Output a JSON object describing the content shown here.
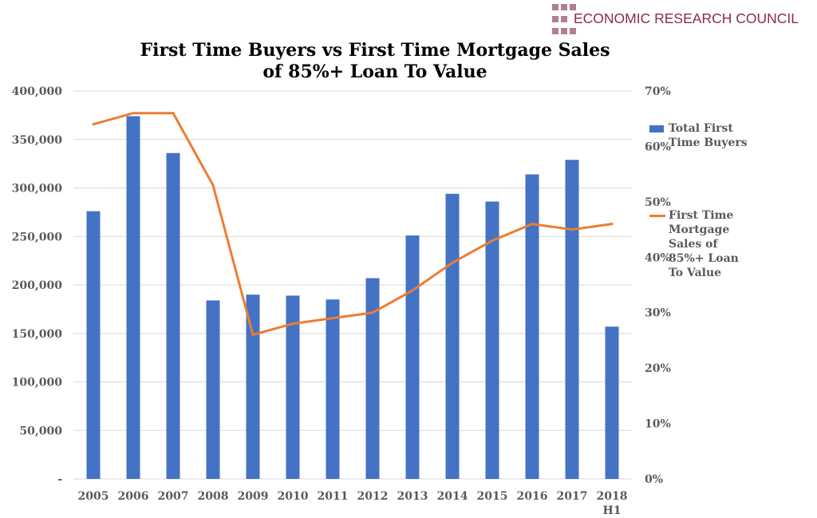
{
  "branding": {
    "logo_text": "ECONOMIC RESEARCH COUNCIL",
    "logo_color": "#8b2a4f"
  },
  "chart_data": {
    "type": "bar+line",
    "title_line1": "First Time Buyers vs First Time Mortgage Sales",
    "title_line2": "of 85%+ Loan To Value",
    "categories": [
      "2005",
      "2006",
      "2007",
      "2008",
      "2009",
      "2010",
      "2011",
      "2012",
      "2013",
      "2014",
      "2015",
      "2016",
      "2017",
      "2018 H1"
    ],
    "series": [
      {
        "name": "Total First Time Buyers",
        "type": "bar",
        "axis": "left",
        "color": "#4472c4",
        "values": [
          276000,
          374000,
          336000,
          184000,
          190000,
          189000,
          185000,
          207000,
          251000,
          294000,
          286000,
          314000,
          329000,
          157000
        ]
      },
      {
        "name": "First Time Mortgage Sales of 85%+ Loan To Value",
        "type": "line",
        "axis": "right",
        "color": "#ed7d31",
        "values": [
          64,
          66,
          66,
          53,
          26,
          28,
          29,
          30,
          34,
          39,
          43,
          46,
          45,
          46
        ]
      }
    ],
    "left_axis": {
      "ylim": [
        0,
        400000
      ],
      "ticks": [
        "-",
        "50,000",
        "100,000",
        "150,000",
        "200,000",
        "250,000",
        "300,000",
        "350,000",
        "400,000"
      ]
    },
    "right_axis": {
      "ylim": [
        0,
        70
      ],
      "ticks": [
        "0%",
        "10%",
        "20%",
        "30%",
        "40%",
        "50%",
        "60%",
        "70%"
      ]
    },
    "legend": {
      "placement": "right",
      "entries": [
        [
          "Total First",
          "Time Buyers"
        ],
        [
          "First Time",
          "Mortgage",
          "Sales of",
          "85%+ Loan",
          "To Value"
        ]
      ]
    },
    "grid": true
  }
}
